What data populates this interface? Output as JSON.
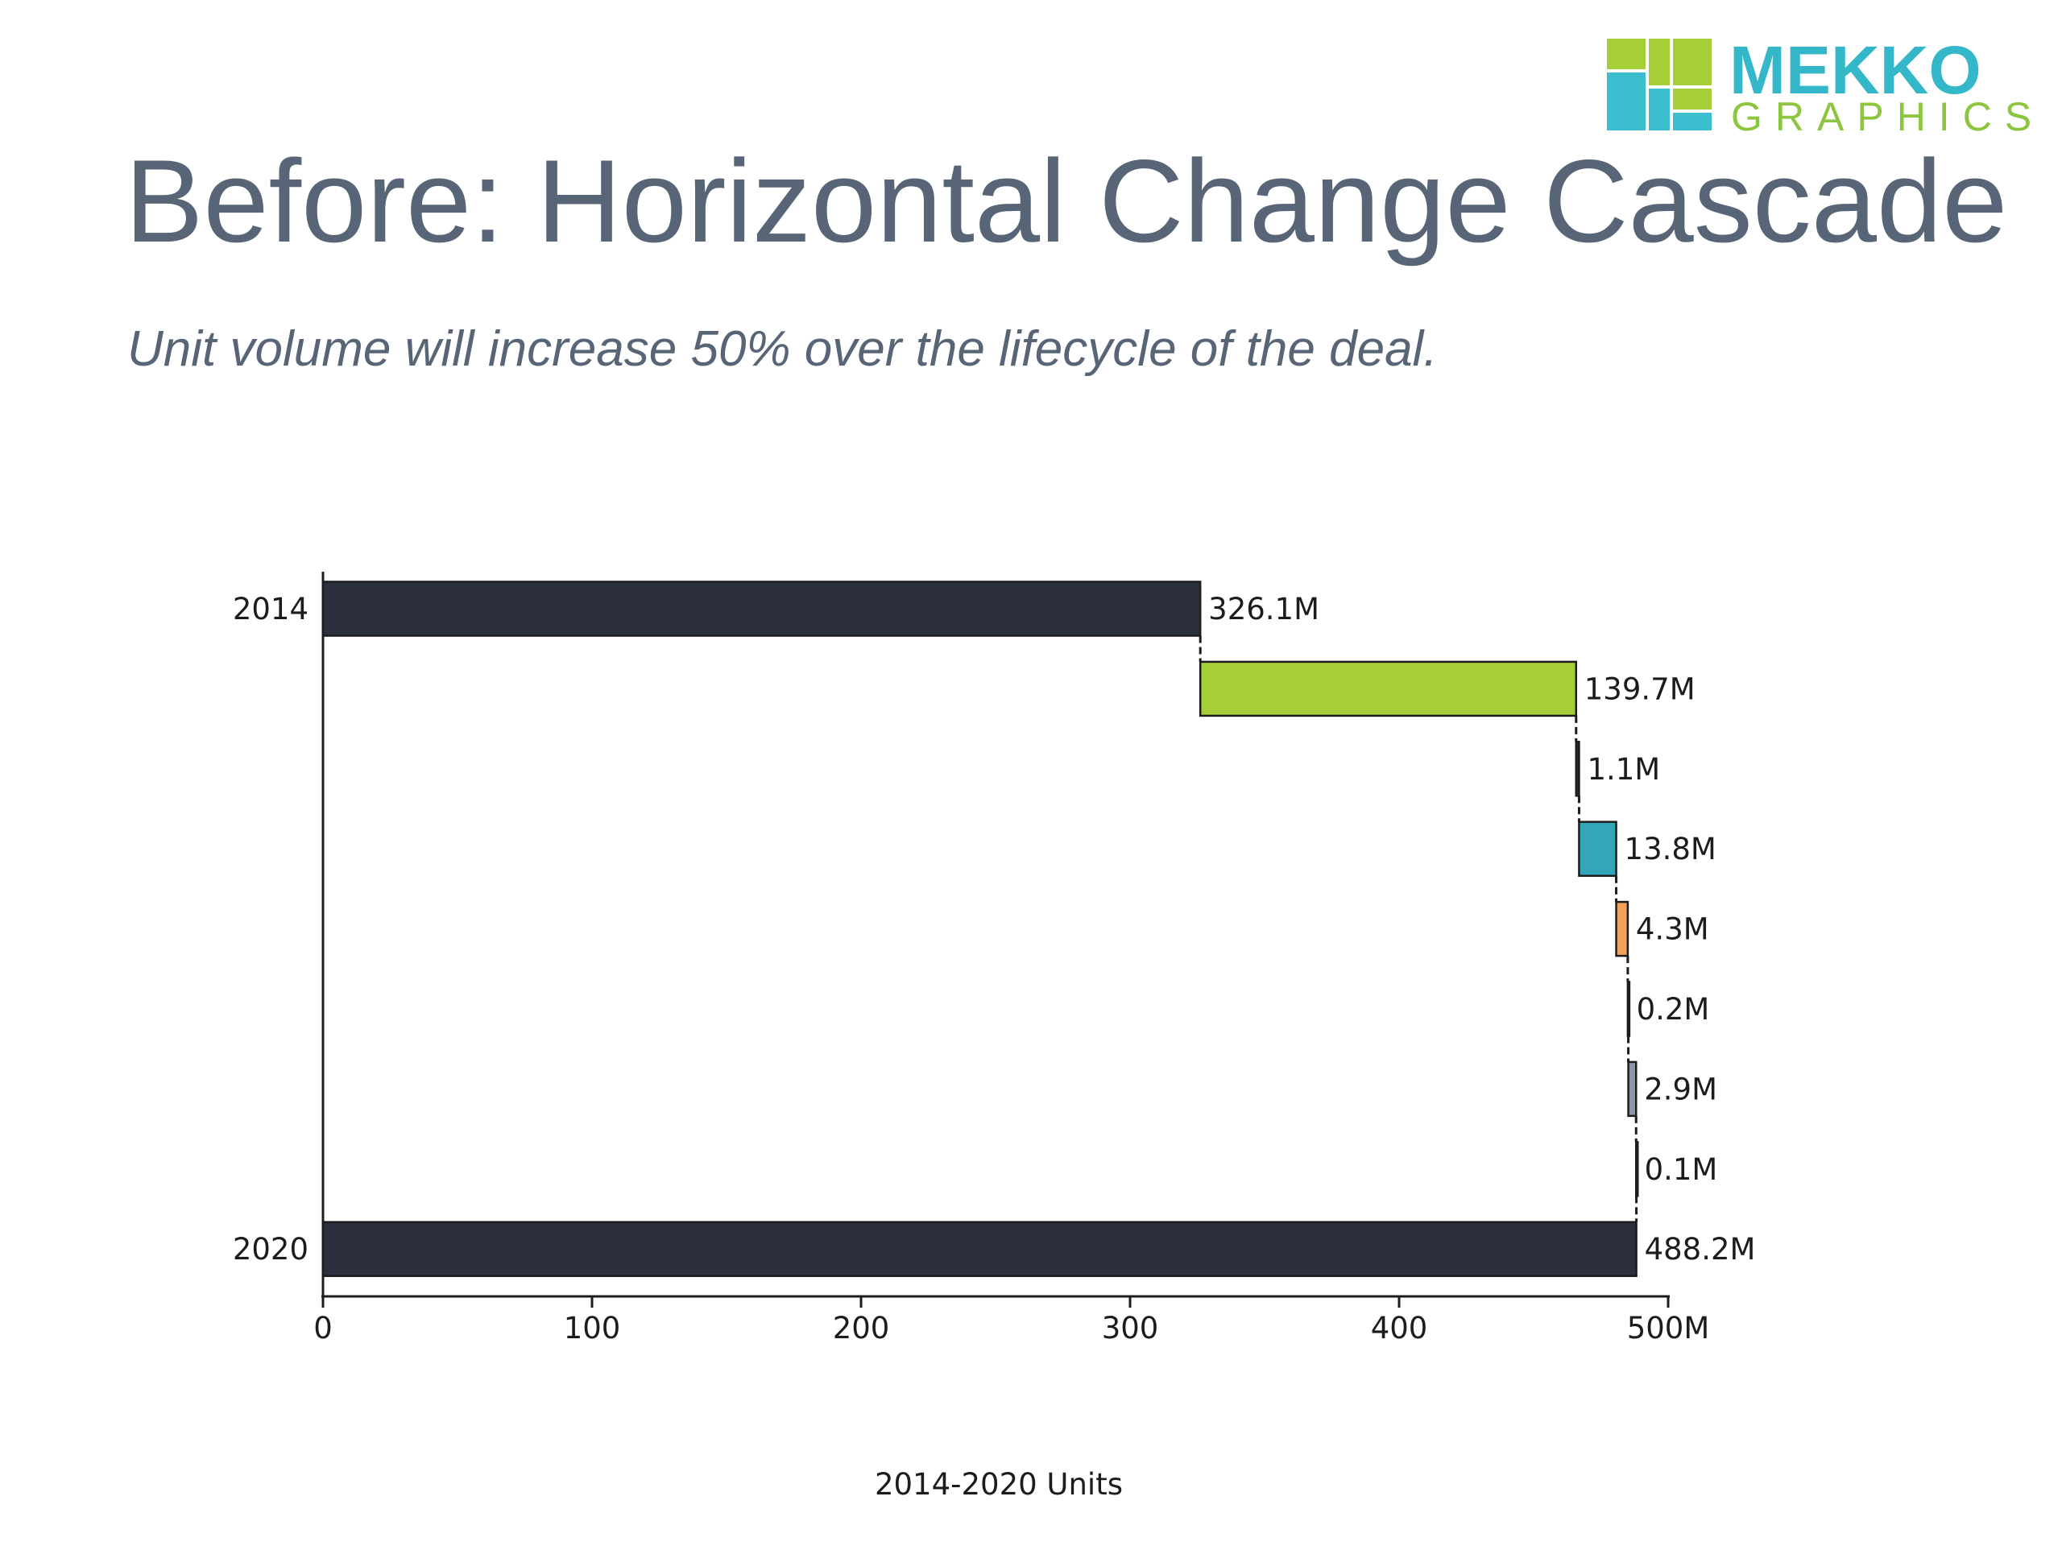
{
  "header": {
    "title": "Before: Horizontal Change Cascade",
    "subtitle": "Unit volume will increase 50% over the lifecycle of the deal."
  },
  "logo": {
    "line1": "MEKKO",
    "line2": "GRAPHICS",
    "colors": {
      "green": "#a6ce39",
      "teal": "#3bbfcf"
    }
  },
  "chart_data": {
    "type": "bar",
    "orientation": "horizontal",
    "variant": "cascade",
    "title": "",
    "xlabel": "2014-2020 Units",
    "ylabel": "",
    "xlim": [
      0,
      500
    ],
    "x_ticks": [
      "0",
      "100",
      "200",
      "300",
      "400",
      "500M"
    ],
    "grid": false,
    "legend": "none",
    "rows": [
      {
        "label": "2014",
        "value": 326.1,
        "start": 0,
        "kind": "total",
        "data_label": "326.1M",
        "color": "#2b2f3e"
      },
      {
        "label": "",
        "value": 139.7,
        "start": 326.1,
        "kind": "change",
        "data_label": "139.7M",
        "color": "#a6ce39"
      },
      {
        "label": "",
        "value": 1.1,
        "start": 465.8,
        "kind": "change",
        "data_label": "1.1M",
        "color": "#2b2f3e"
      },
      {
        "label": "",
        "value": 13.8,
        "start": 466.9,
        "kind": "change",
        "data_label": "13.8M",
        "color": "#33a6b8"
      },
      {
        "label": "",
        "value": 4.3,
        "start": 480.7,
        "kind": "change",
        "data_label": "4.3M",
        "color": "#f0a25a"
      },
      {
        "label": "",
        "value": 0.2,
        "start": 485.0,
        "kind": "change",
        "data_label": "0.2M",
        "color": "#2b2f3e"
      },
      {
        "label": "",
        "value": 2.9,
        "start": 485.2,
        "kind": "change",
        "data_label": "2.9M",
        "color": "#8a95ab"
      },
      {
        "label": "",
        "value": 0.1,
        "start": 488.1,
        "kind": "change",
        "data_label": "0.1M",
        "color": "#2b2f3e"
      },
      {
        "label": "2020",
        "value": 488.2,
        "start": 0,
        "kind": "total",
        "data_label": "488.2M",
        "color": "#2b2f3e"
      }
    ]
  }
}
